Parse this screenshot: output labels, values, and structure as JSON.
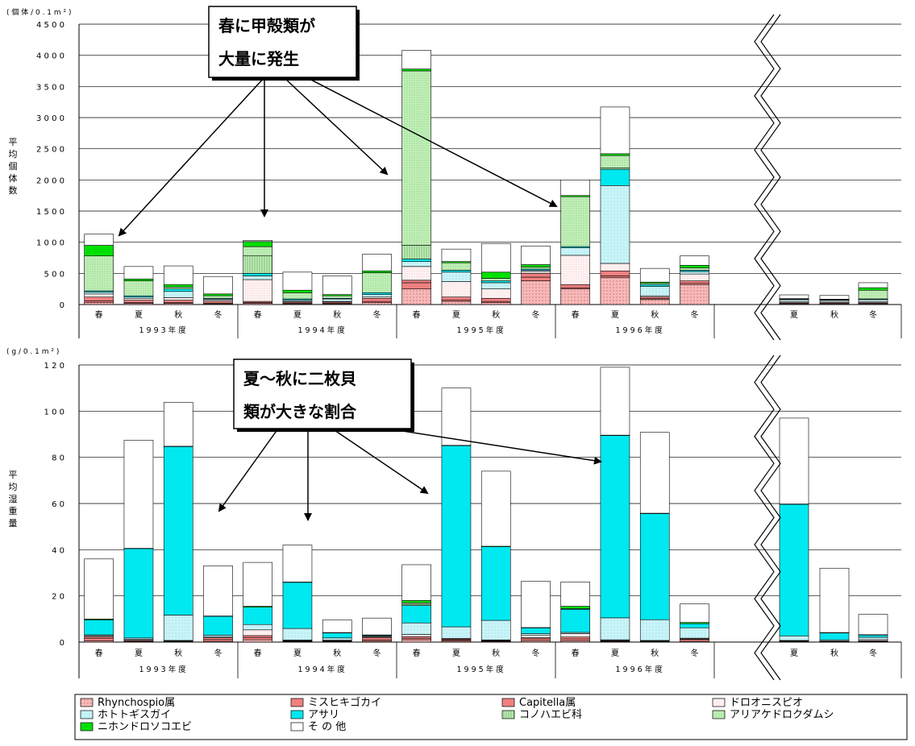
{
  "colors": {
    "rhynchospio": "#f8b8b8",
    "misuhiki": "#f08080",
    "capitella": "#f08080",
    "tooni": "#fff0f0",
    "hototogisu": "#c8f4f8",
    "asari": "#00e8f0",
    "konohaebi": "#c0f0b8",
    "ariake": "#c0f0b8",
    "nihon": "#00e000",
    "other": "#ffffff"
  },
  "legend": {
    "items": [
      {
        "key": "rhynchospio",
        "label": "Rhynchospio属",
        "pattern": "dots"
      },
      {
        "key": "misuhiki",
        "label": "ミスヒキゴカイ",
        "pattern": "solid"
      },
      {
        "key": "capitella",
        "label": "Capitella属",
        "pattern": "solid"
      },
      {
        "key": "tooni",
        "label": "ドロオニスピオ",
        "pattern": "light"
      },
      {
        "key": "hototogisu",
        "label": "ホトトギスガイ",
        "pattern": "solid"
      },
      {
        "key": "asari",
        "label": "アサリ",
        "pattern": "solid"
      },
      {
        "key": "konohaebi",
        "label": "コノハエビ科",
        "pattern": "vstripe"
      },
      {
        "key": "ariake",
        "label": "アリアケドロクダムシ",
        "pattern": "dots"
      },
      {
        "key": "nihon",
        "label": "ニホンドロソコエビ",
        "pattern": "solid"
      },
      {
        "key": "other",
        "label": "そ の 他",
        "pattern": "solid"
      }
    ]
  },
  "chart_data": [
    {
      "type": "bar",
      "stacked": true,
      "unit_label": "( 個 体 / 0 . 1 m ² )",
      "ylabel": "平均個体数",
      "ylim": [
        0,
        4500
      ],
      "yticks": [
        0,
        500,
        1000,
        1500,
        2000,
        2500,
        3000,
        3500,
        4000,
        4500
      ],
      "ytick_labels": [
        "0",
        "5 0 0",
        "1 0 0 0",
        "1 5 0 0",
        "2 0 0 0",
        "2 5 0 0",
        "3 0 0 0",
        "3 5 0 0",
        "4 0 0 0",
        "4 5 0 0"
      ],
      "groups": [
        {
          "label": "1 9 9 3 年 度",
          "seasons": [
            "春",
            "夏",
            "秋",
            "冬"
          ]
        },
        {
          "label": "1 9 9 4 年 度",
          "seasons": [
            "春",
            "夏",
            "秋",
            "冬"
          ]
        },
        {
          "label": "1 9 9 5 年 度",
          "seasons": [
            "春",
            "夏",
            "秋",
            "冬"
          ]
        },
        {
          "label": "1 9 9 6 年 度",
          "seasons": [
            "春",
            "夏",
            "秋",
            "冬"
          ]
        },
        {
          "label": "",
          "seasons": [
            "夏",
            "秋",
            "冬"
          ]
        }
      ],
      "bars": [
        [
          30,
          30,
          60,
          50,
          30,
          20,
          0,
          560,
          170,
          180
        ],
        [
          20,
          10,
          40,
          30,
          20,
          20,
          0,
          240,
          30,
          200
        ],
        [
          20,
          10,
          40,
          40,
          100,
          40,
          0,
          30,
          40,
          300
        ],
        [
          10,
          10,
          30,
          20,
          20,
          10,
          0,
          40,
          30,
          280
        ],
        [
          20,
          10,
          20,
          350,
          60,
          40,
          280,
          150,
          80,
          20
        ],
        [
          10,
          10,
          20,
          10,
          20,
          20,
          0,
          100,
          40,
          290
        ],
        [
          10,
          10,
          20,
          10,
          40,
          10,
          0,
          40,
          20,
          300
        ],
        [
          30,
          20,
          50,
          20,
          40,
          30,
          0,
          320,
          30,
          270
        ],
        [
          250,
          100,
          40,
          220,
          80,
          40,
          220,
          2800,
          30,
          300
        ],
        [
          50,
          20,
          50,
          250,
          150,
          30,
          0,
          120,
          20,
          200
        ],
        [
          30,
          20,
          50,
          150,
          100,
          30,
          0,
          40,
          100,
          460
        ],
        [
          380,
          60,
          60,
          30,
          20,
          20,
          0,
          30,
          40,
          300
        ],
        [
          250,
          20,
          50,
          470,
          120,
          20,
          0,
          800,
          20,
          250
        ],
        [
          430,
          30,
          80,
          120,
          1250,
          260,
          20,
          200,
          30,
          750
        ],
        [
          80,
          20,
          20,
          20,
          150,
          30,
          0,
          20,
          20,
          220
        ],
        [
          320,
          20,
          40,
          110,
          40,
          20,
          0,
          40,
          40,
          150
        ],
        [
          10,
          10,
          10,
          20,
          30,
          5,
          0,
          5,
          5,
          60
        ],
        [
          10,
          10,
          10,
          20,
          20,
          5,
          0,
          5,
          5,
          60
        ],
        [
          10,
          10,
          10,
          20,
          30,
          10,
          0,
          140,
          40,
          80
        ]
      ]
    },
    {
      "type": "bar",
      "stacked": true,
      "unit_label": "( g / 0 . 1 m ² )",
      "ylabel": "平均湿重量",
      "ylim": [
        0,
        120
      ],
      "yticks": [
        0,
        20,
        40,
        60,
        80,
        100,
        120
      ],
      "ytick_labels": [
        "0",
        "2 0",
        "4 0",
        "6 0",
        "8 0",
        "1 0 0",
        "1 2 0"
      ],
      "groups": [
        {
          "label": "1 9 9 3 年 度",
          "seasons": [
            "春",
            "夏",
            "秋",
            "冬"
          ]
        },
        {
          "label": "1 9 9 4 年 度",
          "seasons": [
            "春",
            "夏",
            "秋",
            "冬"
          ]
        },
        {
          "label": "1 9 9 5 年 度",
          "seasons": [
            "春",
            "夏",
            "秋",
            "冬"
          ]
        },
        {
          "label": "1 9 9 6 年 度",
          "seasons": [
            "春",
            "夏",
            "秋",
            "冬"
          ]
        },
        {
          "label": "",
          "seasons": [
            "夏",
            "秋",
            "冬"
          ]
        }
      ],
      "bars": [
        [
          0.5,
          1.0,
          0.8,
          0.5,
          0.3,
          6.5,
          0,
          0,
          0.4,
          26
        ],
        [
          0.2,
          0.3,
          0.3,
          0.4,
          0.6,
          38.7,
          0,
          0,
          0.1,
          46.8
        ],
        [
          0.1,
          0.2,
          0.2,
          0.2,
          11.0,
          73.0,
          0,
          0,
          0.1,
          19.0
        ],
        [
          0.3,
          0.8,
          0.8,
          0.3,
          0.8,
          8.2,
          0,
          0,
          0.1,
          21.7
        ],
        [
          1.0,
          1.0,
          0.8,
          2.5,
          2.3,
          7.5,
          0,
          0,
          0.4,
          19.0
        ],
        [
          0.2,
          0.2,
          0.2,
          0.3,
          5.0,
          20.0,
          0,
          0,
          0.1,
          16.0
        ],
        [
          0.2,
          0.2,
          0.2,
          0.2,
          1.0,
          2.2,
          0,
          0,
          0.1,
          5.5
        ],
        [
          0.4,
          0.6,
          1.0,
          0.3,
          0.3,
          0.4,
          0,
          0,
          0.1,
          7.3
        ],
        [
          1.0,
          0.5,
          0.8,
          1.0,
          5.0,
          7.5,
          0.6,
          0.6,
          1.0,
          15.5
        ],
        [
          0.4,
          0.5,
          0.4,
          0.3,
          5.0,
          78.5,
          0,
          0,
          0.1,
          24.8
        ],
        [
          0.2,
          0.3,
          0.2,
          0.2,
          8.5,
          32.0,
          0,
          0,
          0.1,
          32.5
        ],
        [
          0.6,
          0.8,
          0.5,
          1.0,
          0.8,
          2.5,
          0,
          0,
          0.1,
          20.0
        ],
        [
          0.6,
          0.8,
          0.8,
          1.5,
          0.5,
          10.0,
          0,
          0.3,
          1.0,
          10.5
        ],
        [
          0.2,
          0.3,
          0.2,
          0.3,
          9.5,
          79.0,
          0,
          0,
          0.1,
          29.4
        ],
        [
          0.1,
          0.2,
          0.2,
          0.2,
          9.0,
          46.0,
          0,
          0,
          0.1,
          35.0
        ],
        [
          0.3,
          0.8,
          0.3,
          0.3,
          4.5,
          1.8,
          0,
          0,
          0.5,
          8.0
        ],
        [
          0.1,
          0.2,
          0.2,
          0.2,
          2.0,
          57.0,
          0,
          0,
          0.1,
          37.2
        ],
        [
          0.1,
          0.1,
          0.1,
          0.2,
          0.5,
          3.0,
          0,
          0,
          0.1,
          27.9
        ],
        [
          0.1,
          0.2,
          0.3,
          0.5,
          1.0,
          1.0,
          0,
          0,
          0.1,
          8.8
        ]
      ]
    }
  ],
  "callouts": [
    {
      "lines": [
        "春に甲殻類が",
        "大量に発生"
      ]
    },
    {
      "lines": [
        "夏～秋に二枚貝",
        "類が大きな割合"
      ]
    }
  ]
}
